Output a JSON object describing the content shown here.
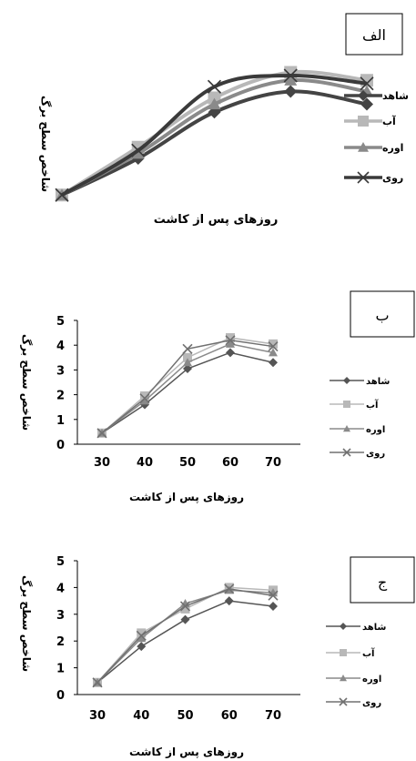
{
  "chart_data": [
    {
      "type": "line",
      "panel_label": "الف",
      "xlabel": "روزهای پس از کاشت",
      "ylabel": "شاخص سطح برگ",
      "x": [
        30,
        40,
        50,
        60,
        70
      ],
      "show_axes": false,
      "ylim": [
        0,
        5
      ],
      "series": [
        {
          "name": "شاهد",
          "values": [
            0.45,
            1.6,
            3.05,
            3.7,
            3.3
          ],
          "color": "#444444",
          "marker": "diamond"
        },
        {
          "name": "آب",
          "values": [
            0.45,
            1.95,
            3.5,
            4.3,
            4.05
          ],
          "color": "#b8b8b8",
          "marker": "square"
        },
        {
          "name": "اوره",
          "values": [
            0.45,
            1.75,
            3.3,
            4.05,
            3.7
          ],
          "color": "#8a8a8a",
          "marker": "triangle"
        },
        {
          "name": "روی",
          "values": [
            0.45,
            1.85,
            3.85,
            4.2,
            3.95
          ],
          "color": "#3a3a3a",
          "marker": "x"
        }
      ],
      "legend_position": "right"
    },
    {
      "type": "line",
      "panel_label": "ب",
      "xlabel": "روزهای پس از کاشت",
      "ylabel": "شاخص سطح برگ",
      "x": [
        30,
        40,
        50,
        60,
        70
      ],
      "x_ticks": [
        "30",
        "40",
        "50",
        "60",
        "70"
      ],
      "y_ticks": [
        "0",
        "1",
        "2",
        "3",
        "4",
        "5"
      ],
      "ylim": [
        0,
        5
      ],
      "show_axes": true,
      "series": [
        {
          "name": "شاهد",
          "values": [
            0.45,
            1.6,
            3.05,
            3.7,
            3.3
          ],
          "color": "#555555",
          "marker": "diamond"
        },
        {
          "name": "آب",
          "values": [
            0.45,
            1.95,
            3.5,
            4.3,
            4.05
          ],
          "color": "#b8b8b8",
          "marker": "square"
        },
        {
          "name": "اوره",
          "values": [
            0.45,
            1.75,
            3.3,
            4.05,
            3.7
          ],
          "color": "#8a8a8a",
          "marker": "triangle"
        },
        {
          "name": "روی",
          "values": [
            0.45,
            1.85,
            3.85,
            4.2,
            3.95
          ],
          "color": "#707070",
          "marker": "x"
        }
      ],
      "legend_position": "right"
    },
    {
      "type": "line",
      "panel_label": "ج",
      "xlabel": "روزهای پس از کاشت",
      "ylabel": "شاخص سطح برگ",
      "x": [
        30,
        40,
        50,
        60,
        70
      ],
      "x_ticks": [
        "30",
        "40",
        "50",
        "60",
        "70"
      ],
      "y_ticks": [
        "0",
        "1",
        "2",
        "3",
        "4",
        "5"
      ],
      "ylim": [
        0,
        5
      ],
      "show_axes": true,
      "series": [
        {
          "name": "شاهد",
          "values": [
            0.45,
            1.8,
            2.8,
            3.5,
            3.3
          ],
          "color": "#555555",
          "marker": "diamond"
        },
        {
          "name": "آب",
          "values": [
            0.45,
            2.3,
            3.2,
            4.0,
            3.9
          ],
          "color": "#b8b8b8",
          "marker": "square"
        },
        {
          "name": "اوره",
          "values": [
            0.45,
            2.1,
            3.4,
            3.9,
            3.8
          ],
          "color": "#8a8a8a",
          "marker": "triangle"
        },
        {
          "name": "روی",
          "values": [
            0.45,
            2.2,
            3.3,
            3.95,
            3.7
          ],
          "color": "#707070",
          "marker": "x"
        }
      ],
      "legend_position": "right"
    }
  ]
}
